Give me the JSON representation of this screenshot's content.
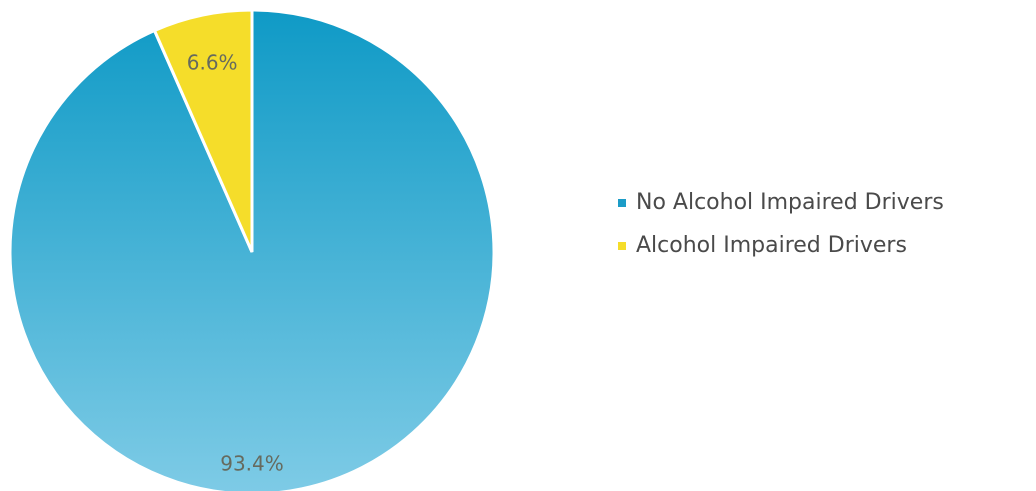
{
  "chart_data": {
    "type": "pie",
    "title": "",
    "slices": [
      {
        "name": "No Alcohol Impaired Drivers",
        "value": 93.4,
        "label": "93.4%",
        "color": "#1c9cc7"
      },
      {
        "name": "Alcohol Impaired Drivers",
        "value": 6.6,
        "label": "6.6%",
        "color": "#f5dd2a"
      }
    ],
    "start_angle_deg": 0,
    "direction": "clockwise",
    "legend_position": "right"
  }
}
